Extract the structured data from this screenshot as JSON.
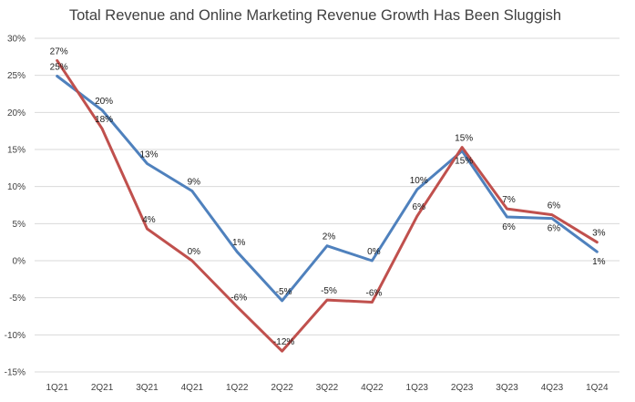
{
  "chart_data": {
    "type": "line",
    "title": "Total Revenue and Online Marketing Revenue Growth Has Been Sluggish",
    "xlabel": "",
    "ylabel": "",
    "categories": [
      "1Q21",
      "2Q21",
      "3Q21",
      "4Q21",
      "1Q22",
      "2Q22",
      "3Q22",
      "4Q22",
      "1Q23",
      "2Q23",
      "3Q23",
      "4Q23",
      "1Q24"
    ],
    "ylim": [
      -15,
      30
    ],
    "yticks": [
      -15,
      -10,
      -5,
      0,
      5,
      10,
      15,
      20,
      25,
      30
    ],
    "ytick_labels": [
      "-15%",
      "-10%",
      "-5%",
      "0%",
      "5%",
      "10%",
      "15%",
      "20%",
      "25%",
      "30%"
    ],
    "grid": true,
    "legend": "none",
    "series": [
      {
        "color": "#4f81bd",
        "values": [
          24.9,
          20.3,
          13.1,
          9.4,
          1.2,
          -5.4,
          2.0,
          0.0,
          9.6,
          14.8,
          5.9,
          5.7,
          1.2
        ],
        "labels": [
          "25%",
          "20%",
          "13%",
          "9%",
          "1%",
          "-5%",
          "2%",
          "0%",
          "10%",
          "15%",
          "6%",
          "6%",
          "1%"
        ]
      },
      {
        "color": "#c0504d",
        "values": [
          27.0,
          17.8,
          4.3,
          0.0,
          -6.2,
          -12.2,
          -5.3,
          -5.6,
          6.0,
          15.3,
          7.0,
          6.2,
          2.5
        ],
        "labels": [
          "27%",
          "18%",
          "4%",
          "0%",
          "-6%",
          "-12%",
          "-5%",
          "-6%",
          "6%",
          "15%",
          "7%",
          "6%",
          "3%"
        ]
      }
    ]
  }
}
